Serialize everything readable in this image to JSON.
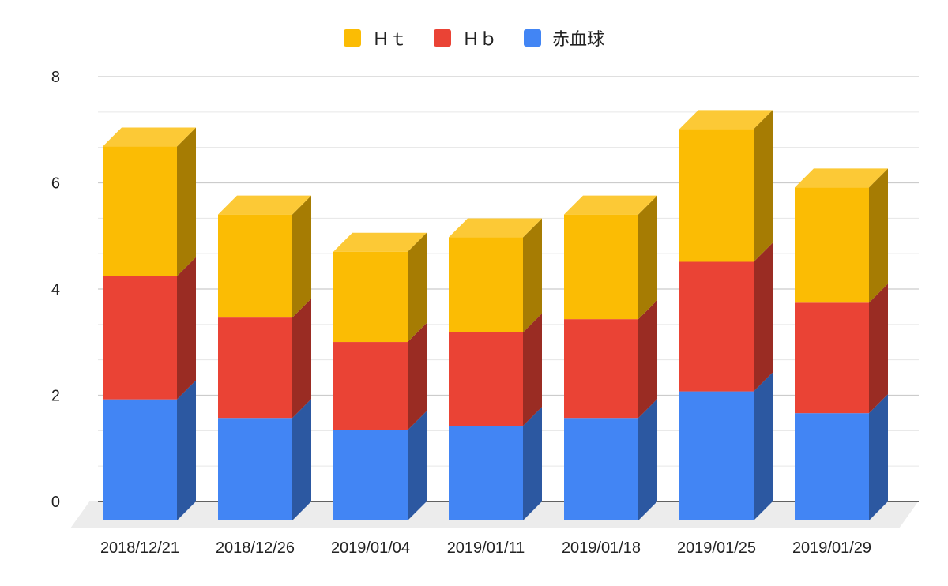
{
  "chart_data": {
    "type": "bar",
    "stacked": true,
    "style": "3d",
    "categories": [
      "2018/12/21",
      "2018/12/26",
      "2019/01/04",
      "2019/01/11",
      "2019/01/18",
      "2019/01/25",
      "2019/01/29"
    ],
    "series": [
      {
        "name": "赤血球",
        "color": "#4285F4",
        "values": [
          2.28,
          1.93,
          1.7,
          1.78,
          1.93,
          2.43,
          2.02
        ]
      },
      {
        "name": "Ｈｂ",
        "color": "#EA4335",
        "values": [
          2.32,
          1.89,
          1.66,
          1.76,
          1.86,
          2.44,
          2.08
        ]
      },
      {
        "name": "Ｈｔ",
        "color": "#FBBC04",
        "values": [
          2.44,
          1.94,
          1.7,
          1.79,
          1.97,
          2.5,
          2.17
        ]
      }
    ],
    "legend_order": [
      "Ｈｔ",
      "Ｈｂ",
      "赤血球"
    ],
    "legend_position": "top",
    "ylim": [
      0,
      8
    ],
    "y_ticks": [
      "0",
      "2",
      "4",
      "6",
      "8"
    ],
    "grid": true,
    "xlabel": "",
    "ylabel": "",
    "title": ""
  }
}
